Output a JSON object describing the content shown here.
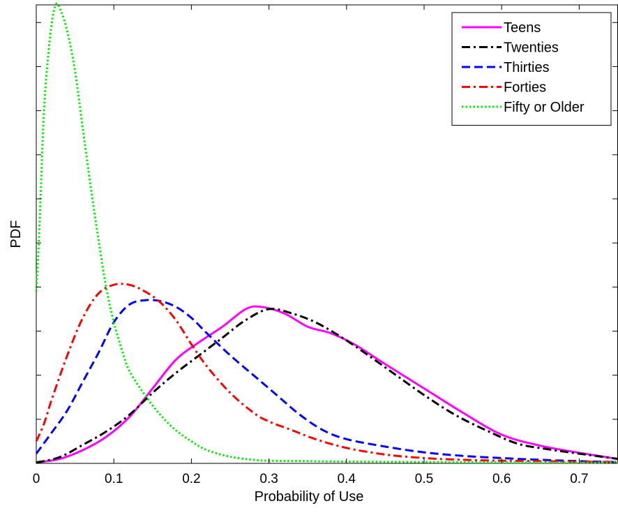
{
  "chart_data": {
    "type": "line",
    "xlabel": "Probability of Use",
    "ylabel": "PDF",
    "xlim": [
      0,
      0.75
    ],
    "ylim": [
      0,
      10.4
    ],
    "x_ticks": [
      0,
      0.1,
      0.2,
      0.3,
      0.4,
      0.5,
      0.6,
      0.7
    ],
    "x_tick_labels": [
      "0",
      "0.1",
      "0.2",
      "0.3",
      "0.4",
      "0.5",
      "0.6",
      "0.7"
    ],
    "y_ticks": [
      0,
      1,
      2,
      3,
      4,
      5,
      6,
      7,
      8,
      9,
      10
    ],
    "y_tick_labels_visible": false,
    "grid": false,
    "legend_position": "top-right",
    "series": [
      {
        "name": "Teens",
        "color": "#ff00ff",
        "dash": "solid",
        "points": [
          [
            0,
            0.02
          ],
          [
            0.03,
            0.1
          ],
          [
            0.06,
            0.3
          ],
          [
            0.09,
            0.6
          ],
          [
            0.12,
            1.05
          ],
          [
            0.15,
            1.7
          ],
          [
            0.18,
            2.35
          ],
          [
            0.21,
            2.75
          ],
          [
            0.24,
            3.1
          ],
          [
            0.27,
            3.5
          ],
          [
            0.29,
            3.55
          ],
          [
            0.32,
            3.4
          ],
          [
            0.35,
            3.1
          ],
          [
            0.38,
            2.95
          ],
          [
            0.41,
            2.7
          ],
          [
            0.45,
            2.25
          ],
          [
            0.5,
            1.7
          ],
          [
            0.55,
            1.15
          ],
          [
            0.6,
            0.65
          ],
          [
            0.65,
            0.4
          ],
          [
            0.7,
            0.24
          ],
          [
            0.75,
            0.1
          ]
        ]
      },
      {
        "name": "Twenties",
        "color": "#000000",
        "dash": "dashdot",
        "points": [
          [
            0,
            0.02
          ],
          [
            0.03,
            0.14
          ],
          [
            0.06,
            0.42
          ],
          [
            0.09,
            0.72
          ],
          [
            0.12,
            1.1
          ],
          [
            0.15,
            1.6
          ],
          [
            0.18,
            2.05
          ],
          [
            0.21,
            2.45
          ],
          [
            0.24,
            2.85
          ],
          [
            0.27,
            3.25
          ],
          [
            0.3,
            3.5
          ],
          [
            0.33,
            3.4
          ],
          [
            0.36,
            3.2
          ],
          [
            0.39,
            2.9
          ],
          [
            0.42,
            2.55
          ],
          [
            0.46,
            2.05
          ],
          [
            0.5,
            1.55
          ],
          [
            0.54,
            1.1
          ],
          [
            0.58,
            0.75
          ],
          [
            0.62,
            0.45
          ],
          [
            0.66,
            0.32
          ],
          [
            0.7,
            0.22
          ],
          [
            0.75,
            0.1
          ]
        ]
      },
      {
        "name": "Thirties",
        "color": "#0000ff",
        "dash": "dashed",
        "points": [
          [
            0,
            0.22
          ],
          [
            0.02,
            0.7
          ],
          [
            0.04,
            1.2
          ],
          [
            0.06,
            1.85
          ],
          [
            0.08,
            2.5
          ],
          [
            0.1,
            3.2
          ],
          [
            0.12,
            3.6
          ],
          [
            0.14,
            3.7
          ],
          [
            0.16,
            3.68
          ],
          [
            0.18,
            3.55
          ],
          [
            0.2,
            3.3
          ],
          [
            0.22,
            2.95
          ],
          [
            0.25,
            2.45
          ],
          [
            0.28,
            2.0
          ],
          [
            0.31,
            1.55
          ],
          [
            0.34,
            1.1
          ],
          [
            0.37,
            0.75
          ],
          [
            0.4,
            0.55
          ],
          [
            0.45,
            0.38
          ],
          [
            0.5,
            0.25
          ],
          [
            0.55,
            0.17
          ],
          [
            0.6,
            0.12
          ],
          [
            0.65,
            0.08
          ],
          [
            0.7,
            0.05
          ],
          [
            0.75,
            0.03
          ]
        ]
      },
      {
        "name": "Forties",
        "color": "#ff0000",
        "dash": "dashdot",
        "points": [
          [
            0,
            0.5
          ],
          [
            0.01,
            0.9
          ],
          [
            0.02,
            1.45
          ],
          [
            0.04,
            2.45
          ],
          [
            0.06,
            3.3
          ],
          [
            0.08,
            3.85
          ],
          [
            0.1,
            4.05
          ],
          [
            0.12,
            4.05
          ],
          [
            0.14,
            3.9
          ],
          [
            0.16,
            3.65
          ],
          [
            0.18,
            3.25
          ],
          [
            0.2,
            2.7
          ],
          [
            0.22,
            2.2
          ],
          [
            0.25,
            1.6
          ],
          [
            0.28,
            1.15
          ],
          [
            0.3,
            0.95
          ],
          [
            0.33,
            0.75
          ],
          [
            0.36,
            0.55
          ],
          [
            0.4,
            0.35
          ],
          [
            0.45,
            0.2
          ],
          [
            0.5,
            0.12
          ],
          [
            0.55,
            0.08
          ],
          [
            0.6,
            0.06
          ],
          [
            0.65,
            0.05
          ],
          [
            0.7,
            0.04
          ],
          [
            0.75,
            0.03
          ]
        ]
      },
      {
        "name": "Fifty or Older",
        "color": "#00ee00",
        "dash": "dotted",
        "points": [
          [
            0,
            3.9
          ],
          [
            0.004,
            5.3
          ],
          [
            0.01,
            8.0
          ],
          [
            0.018,
            9.7
          ],
          [
            0.025,
            10.4
          ],
          [
            0.032,
            10.25
          ],
          [
            0.04,
            9.8
          ],
          [
            0.05,
            8.9
          ],
          [
            0.06,
            7.6
          ],
          [
            0.07,
            6.3
          ],
          [
            0.08,
            5.1
          ],
          [
            0.09,
            4.0
          ],
          [
            0.1,
            3.2
          ],
          [
            0.11,
            2.6
          ],
          [
            0.12,
            2.1
          ],
          [
            0.14,
            1.55
          ],
          [
            0.16,
            1.1
          ],
          [
            0.18,
            0.75
          ],
          [
            0.2,
            0.5
          ],
          [
            0.22,
            0.3
          ],
          [
            0.25,
            0.15
          ],
          [
            0.28,
            0.08
          ],
          [
            0.3,
            0.06
          ],
          [
            0.35,
            0.05
          ],
          [
            0.4,
            0.04
          ],
          [
            0.5,
            0.03
          ],
          [
            0.6,
            0.02
          ],
          [
            0.75,
            0.02
          ]
        ]
      }
    ]
  }
}
